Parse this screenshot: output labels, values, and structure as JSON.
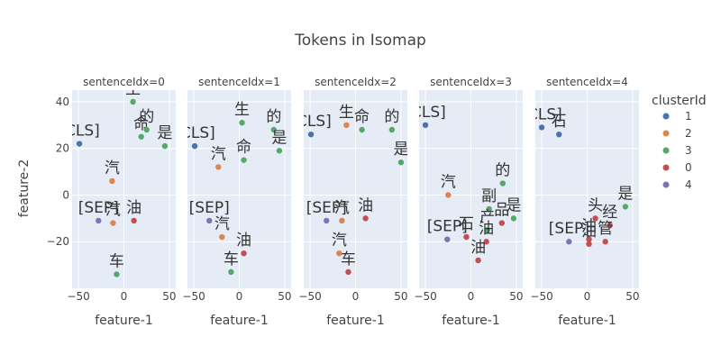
{
  "chart_data": {
    "type": "scatter",
    "title": "Tokens in Isomap",
    "xlabel": "feature-1",
    "ylabel": "feature-2",
    "xlim": [
      -57,
      57
    ],
    "ylim": [
      -40,
      45
    ],
    "xticks": [
      -50,
      0,
      50
    ],
    "xtick_labels": [
      "−50",
      "0",
      "50"
    ],
    "yticks": [
      -20,
      0,
      20,
      40
    ],
    "ytick_labels": [
      "−20",
      "0",
      "20",
      "40"
    ],
    "grid": true,
    "legend": {
      "title": "clusterId",
      "position": "right",
      "entries": [
        {
          "label": "1",
          "color": "#4c72b0"
        },
        {
          "label": "2",
          "color": "#dd8452"
        },
        {
          "label": "3",
          "color": "#55a868"
        },
        {
          "label": "0",
          "color": "#c44e52"
        },
        {
          "label": "4",
          "color": "#8172b3"
        }
      ]
    },
    "facets": [
      {
        "title": "sentenceIdx=0",
        "points": [
          {
            "token": "[CLS]",
            "x": -49,
            "y": 22,
            "cluster": "1"
          },
          {
            "token": "生",
            "x": 10,
            "y": 40,
            "cluster": "3"
          },
          {
            "token": "命",
            "x": 19,
            "y": 25,
            "cluster": "3"
          },
          {
            "token": "的",
            "x": 25,
            "y": 28,
            "cluster": "3"
          },
          {
            "token": "是",
            "x": 45,
            "y": 21,
            "cluster": "3"
          },
          {
            "token": "汽",
            "x": -13,
            "y": 6,
            "cluster": "2"
          },
          {
            "token": "[SEP]",
            "x": -28,
            "y": -11,
            "cluster": "4"
          },
          {
            "token": "汽",
            "x": -12,
            "y": -12,
            "cluster": "2"
          },
          {
            "token": "油",
            "x": 11,
            "y": -11,
            "cluster": "0"
          },
          {
            "token": "车",
            "x": -8,
            "y": -34,
            "cluster": "3"
          }
        ]
      },
      {
        "title": "sentenceIdx=1",
        "points": [
          {
            "token": "[CLS]",
            "x": -49,
            "y": 21,
            "cluster": "1"
          },
          {
            "token": "生",
            "x": 3,
            "y": 31,
            "cluster": "3"
          },
          {
            "token": "的",
            "x": 38,
            "y": 28,
            "cluster": "3"
          },
          {
            "token": "是",
            "x": 44,
            "y": 19,
            "cluster": "3"
          },
          {
            "token": "汽",
            "x": -23,
            "y": 12,
            "cluster": "2"
          },
          {
            "token": "命",
            "x": 5,
            "y": 15,
            "cluster": "3"
          },
          {
            "token": "[SEP]",
            "x": -33,
            "y": -11,
            "cluster": "4"
          },
          {
            "token": "汽",
            "x": -19,
            "y": -18,
            "cluster": "2"
          },
          {
            "token": "油",
            "x": 5,
            "y": -25,
            "cluster": "0"
          },
          {
            "token": "车",
            "x": -9,
            "y": -33,
            "cluster": "3"
          }
        ]
      },
      {
        "title": "sentenceIdx=2",
        "points": [
          {
            "token": "[CLS]",
            "x": -49,
            "y": 26,
            "cluster": "1"
          },
          {
            "token": "生",
            "x": -10,
            "y": 30,
            "cluster": "2"
          },
          {
            "token": "命",
            "x": 7,
            "y": 28,
            "cluster": "3"
          },
          {
            "token": "的",
            "x": 40,
            "y": 28,
            "cluster": "3"
          },
          {
            "token": "是",
            "x": 50,
            "y": 14,
            "cluster": "3"
          },
          {
            "token": "[SEP]",
            "x": -32,
            "y": -11,
            "cluster": "4"
          },
          {
            "token": "汽",
            "x": -15,
            "y": -11,
            "cluster": "2"
          },
          {
            "token": "油",
            "x": 11,
            "y": -10,
            "cluster": "0"
          },
          {
            "token": "汽",
            "x": -18,
            "y": -25,
            "cluster": "2"
          },
          {
            "token": "车",
            "x": -8,
            "y": -33,
            "cluster": "0"
          }
        ]
      },
      {
        "title": "sentenceIdx=3",
        "points": [
          {
            "token": "[CLS]",
            "x": -50,
            "y": 30,
            "cluster": "1"
          },
          {
            "token": "汽",
            "x": -25,
            "y": 0,
            "cluster": "2"
          },
          {
            "token": "的",
            "x": 35,
            "y": 5,
            "cluster": "3"
          },
          {
            "token": "副",
            "x": 20,
            "y": -6,
            "cluster": "3"
          },
          {
            "token": "是",
            "x": 47,
            "y": -10,
            "cluster": "3"
          },
          {
            "token": "品",
            "x": 34,
            "y": -12,
            "cluster": "0"
          },
          {
            "token": "[SEP]",
            "x": -26,
            "y": -19,
            "cluster": "4"
          },
          {
            "token": "产",
            "x": 18,
            "y": -15,
            "cluster": "3"
          },
          {
            "token": "石",
            "x": -5,
            "y": -18,
            "cluster": "0"
          },
          {
            "token": "油",
            "x": 17,
            "y": -20,
            "cluster": "0"
          },
          {
            "token": "油",
            "x": 8,
            "y": -28,
            "cluster": "0"
          }
        ]
      },
      {
        "title": "sentenceIdx=4",
        "points": [
          {
            "token": "[CLS]",
            "x": -50,
            "y": 29,
            "cluster": "1"
          },
          {
            "token": "石",
            "x": -31,
            "y": 26,
            "cluster": "1"
          },
          {
            "token": "是",
            "x": 42,
            "y": -5,
            "cluster": "3"
          },
          {
            "token": "头",
            "x": 9,
            "y": -10,
            "cluster": "0"
          },
          {
            "token": "经",
            "x": 25,
            "y": -13,
            "cluster": "0"
          },
          {
            "token": "[SEP]",
            "x": -20,
            "y": -20,
            "cluster": "4"
          },
          {
            "token": "油",
            "x": 2,
            "y": -19,
            "cluster": "0"
          },
          {
            "token": "管",
            "x": 20,
            "y": -20,
            "cluster": "0"
          },
          {
            "token": "油",
            "x": 2,
            "y": -21,
            "cluster": "0"
          }
        ]
      }
    ]
  }
}
